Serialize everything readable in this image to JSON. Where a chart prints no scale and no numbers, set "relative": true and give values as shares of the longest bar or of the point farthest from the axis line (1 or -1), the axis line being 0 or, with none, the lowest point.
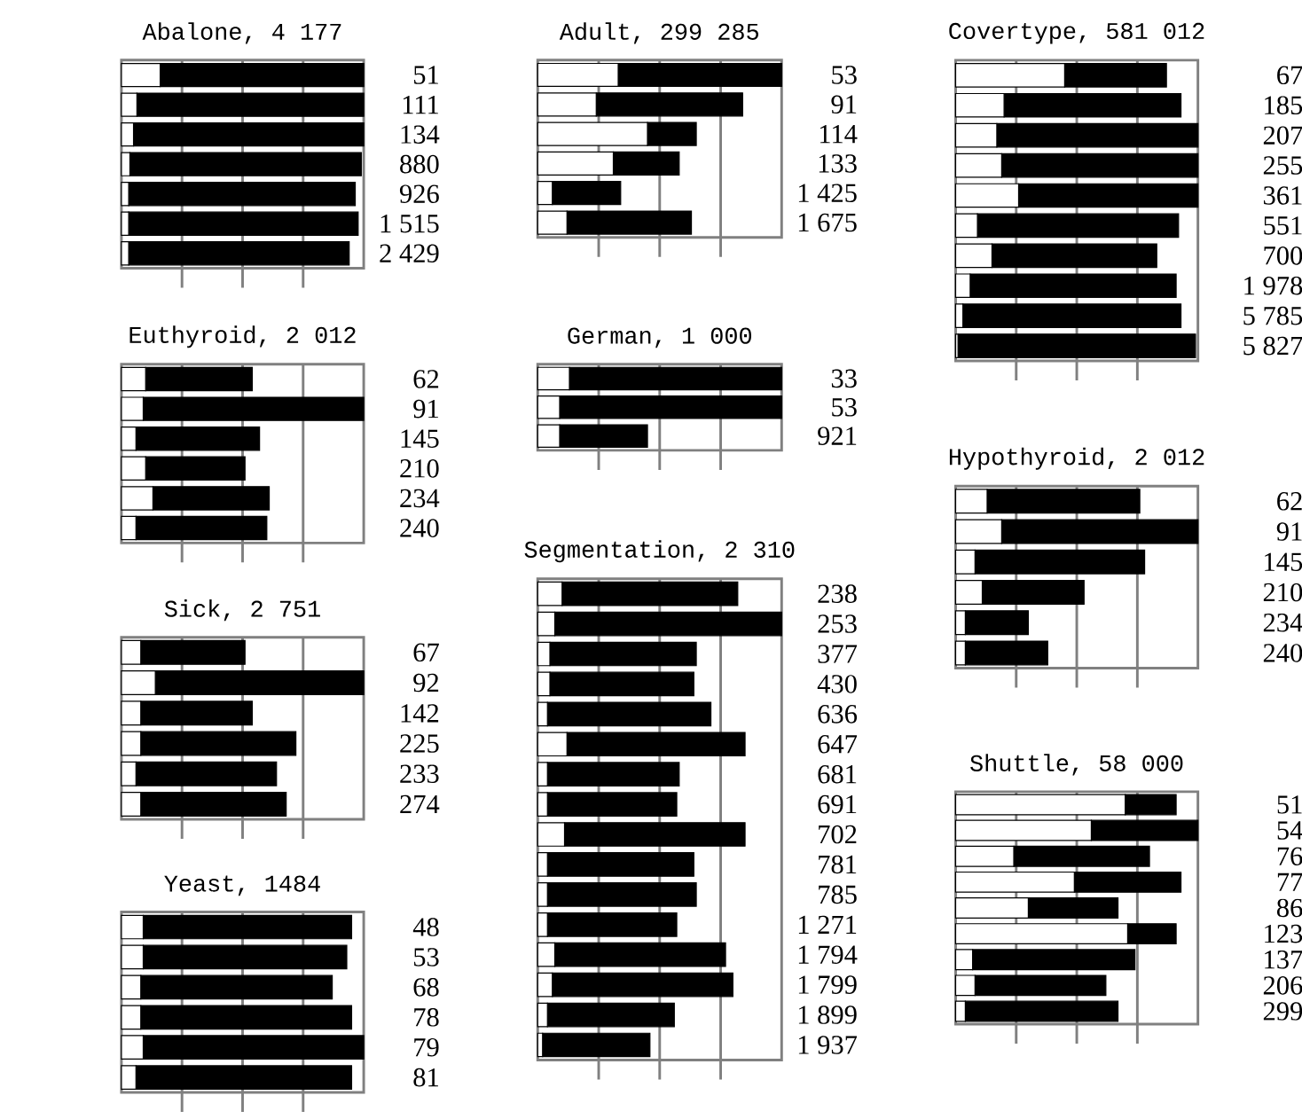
{
  "chart_data": [
    {
      "type": "bar",
      "orientation": "horizontal",
      "stacked": true,
      "relative": true,
      "grid": "x",
      "tick_labels": "y",
      "title": "Abalone, 4 177",
      "categories": [
        "51",
        "111",
        "134",
        "880",
        "926",
        "1 515",
        "2 429"
      ],
      "series": [
        {
          "color": "#ffffff",
          "values": [
            0.16,
            0.064,
            0.05,
            0.035,
            0.03,
            0.03,
            0.03
          ]
        },
        {
          "color": "#000000",
          "values": [
            0.84,
            0.936,
            0.95,
            0.955,
            0.935,
            0.947,
            0.91
          ]
        }
      ]
    },
    {
      "type": "bar",
      "orientation": "horizontal",
      "stacked": true,
      "relative": true,
      "grid": "x",
      "tick_labels": "y",
      "title": "Adult, 299 285",
      "categories": [
        "53",
        "91",
        "114",
        "133",
        "1 425",
        "1 675"
      ],
      "series": [
        {
          "color": "#ffffff",
          "values": [
            0.33,
            0.24,
            0.45,
            0.31,
            0.06,
            0.12
          ]
        },
        {
          "color": "#000000",
          "values": [
            0.67,
            0.6,
            0.2,
            0.27,
            0.28,
            0.51
          ]
        }
      ]
    },
    {
      "type": "bar",
      "orientation": "horizontal",
      "stacked": true,
      "relative": true,
      "grid": "x",
      "tick_labels": "y",
      "title": "Covertype, 581 012",
      "categories": [
        "67",
        "185",
        "207",
        "255",
        "361",
        "551",
        "700",
        "1 978",
        "5 785",
        "5 827"
      ],
      "series": [
        {
          "color": "#ffffff",
          "values": [
            0.45,
            0.2,
            0.17,
            0.19,
            0.26,
            0.09,
            0.15,
            0.06,
            0.03,
            0.01
          ]
        },
        {
          "color": "#000000",
          "values": [
            0.42,
            0.73,
            0.83,
            0.81,
            0.74,
            0.83,
            0.68,
            0.85,
            0.9,
            0.98
          ]
        }
      ]
    },
    {
      "type": "bar",
      "orientation": "horizontal",
      "stacked": true,
      "relative": true,
      "grid": "x",
      "tick_labels": "y",
      "title": "Euthyroid, 2 012",
      "categories": [
        "62",
        "91",
        "145",
        "210",
        "234",
        "240"
      ],
      "series": [
        {
          "color": "#ffffff",
          "values": [
            0.1,
            0.09,
            0.06,
            0.1,
            0.13,
            0.06
          ]
        },
        {
          "color": "#000000",
          "values": [
            0.44,
            0.91,
            0.51,
            0.41,
            0.48,
            0.54
          ]
        }
      ]
    },
    {
      "type": "bar",
      "orientation": "horizontal",
      "stacked": true,
      "relative": true,
      "grid": "x",
      "tick_labels": "y",
      "title": "German, 1 000",
      "categories": [
        "33",
        "53",
        "921"
      ],
      "series": [
        {
          "color": "#ffffff",
          "values": [
            0.13,
            0.09,
            0.09
          ]
        },
        {
          "color": "#000000",
          "values": [
            0.87,
            0.91,
            0.36
          ]
        }
      ]
    },
    {
      "type": "bar",
      "orientation": "horizontal",
      "stacked": true,
      "relative": true,
      "grid": "x",
      "tick_labels": "y",
      "title": "Hypothyroid, 2 012",
      "categories": [
        "62",
        "91",
        "145",
        "210",
        "234",
        "240"
      ],
      "series": [
        {
          "color": "#ffffff",
          "values": [
            0.13,
            0.19,
            0.08,
            0.11,
            0.04,
            0.04
          ]
        },
        {
          "color": "#000000",
          "values": [
            0.63,
            0.81,
            0.7,
            0.42,
            0.26,
            0.34
          ]
        }
      ]
    },
    {
      "type": "bar",
      "orientation": "horizontal",
      "stacked": true,
      "relative": true,
      "grid": "x",
      "tick_labels": "y",
      "title": "Segmentation, 2 310",
      "categories": [
        "238",
        "253",
        "377",
        "430",
        "636",
        "647",
        "681",
        "691",
        "702",
        "781",
        "785",
        "1 271",
        "1 794",
        "1 799",
        "1 899",
        "1 937"
      ],
      "series": [
        {
          "color": "#ffffff",
          "values": [
            0.1,
            0.07,
            0.05,
            0.05,
            0.04,
            0.12,
            0.04,
            0.04,
            0.11,
            0.04,
            0.04,
            0.04,
            0.07,
            0.06,
            0.04,
            0.02
          ]
        },
        {
          "color": "#000000",
          "values": [
            0.72,
            0.93,
            0.6,
            0.59,
            0.67,
            0.73,
            0.54,
            0.53,
            0.74,
            0.6,
            0.61,
            0.53,
            0.7,
            0.74,
            0.52,
            0.44
          ]
        }
      ]
    },
    {
      "type": "bar",
      "orientation": "horizontal",
      "stacked": true,
      "relative": true,
      "grid": "x",
      "tick_labels": "y",
      "title": "Shuttle, 58 000",
      "categories": [
        "51",
        "54",
        "76",
        "77",
        "86",
        "123",
        "137",
        "206",
        "299"
      ],
      "series": [
        {
          "color": "#ffffff",
          "values": [
            0.7,
            0.56,
            0.24,
            0.49,
            0.3,
            0.71,
            0.07,
            0.08,
            0.04
          ]
        },
        {
          "color": "#000000",
          "values": [
            0.21,
            0.44,
            0.56,
            0.44,
            0.37,
            0.2,
            0.67,
            0.54,
            0.63
          ]
        }
      ]
    },
    {
      "type": "bar",
      "orientation": "horizontal",
      "stacked": true,
      "relative": true,
      "grid": "x",
      "tick_labels": "y",
      "title": "Sick, 2 751",
      "categories": [
        "67",
        "92",
        "142",
        "225",
        "233",
        "274"
      ],
      "series": [
        {
          "color": "#ffffff",
          "values": [
            0.08,
            0.14,
            0.08,
            0.08,
            0.06,
            0.08
          ]
        },
        {
          "color": "#000000",
          "values": [
            0.43,
            0.86,
            0.46,
            0.64,
            0.58,
            0.6
          ]
        }
      ]
    },
    {
      "type": "bar",
      "orientation": "horizontal",
      "stacked": true,
      "relative": true,
      "grid": "x",
      "tick_labels": "y",
      "title": "Yeast, 1484",
      "categories": [
        "48",
        "53",
        "68",
        "78",
        "79",
        "81"
      ],
      "series": [
        {
          "color": "#ffffff",
          "values": [
            0.09,
            0.09,
            0.08,
            0.08,
            0.09,
            0.06
          ]
        },
        {
          "color": "#000000",
          "values": [
            0.86,
            0.84,
            0.79,
            0.87,
            0.91,
            0.89
          ]
        }
      ]
    }
  ]
}
